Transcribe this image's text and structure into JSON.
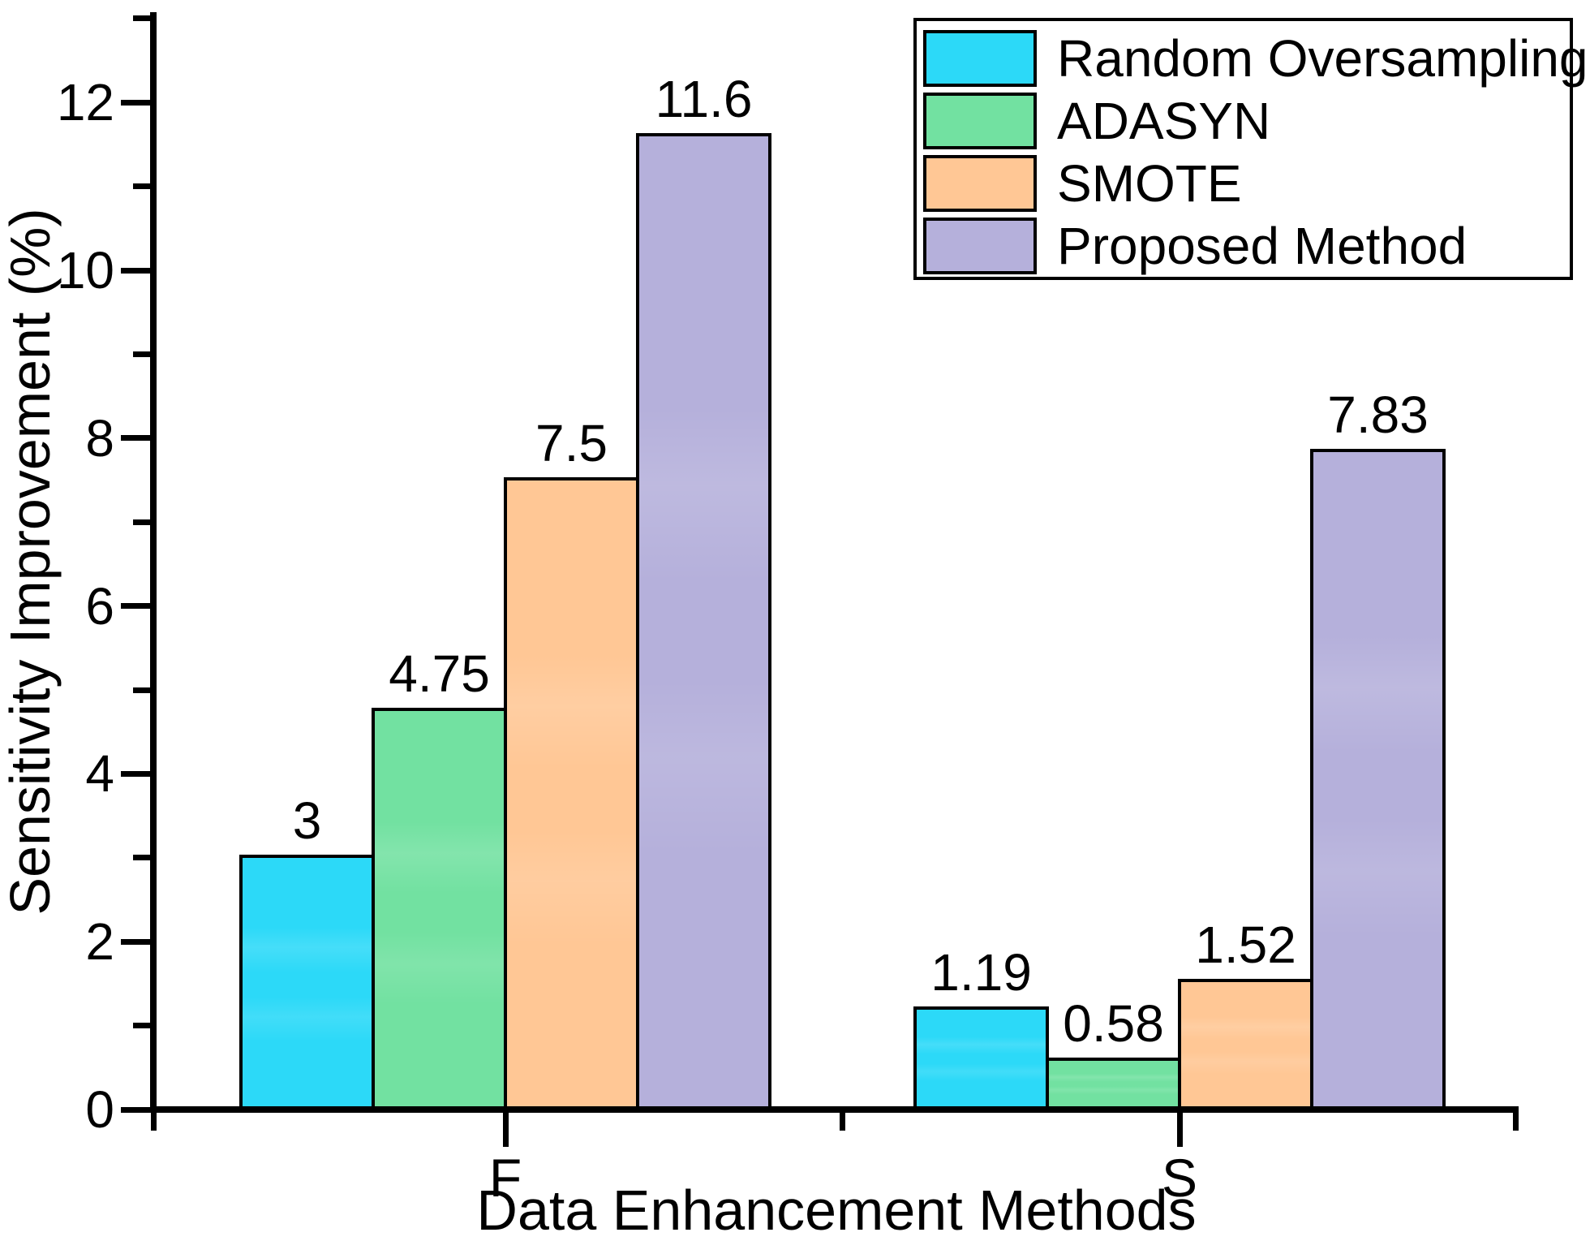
{
  "chart_data": {
    "type": "bar",
    "title": "",
    "xlabel": "Data Enhancement Methods",
    "ylabel": "Sensitivity Improvement (%)",
    "categories": [
      "F",
      "S"
    ],
    "series": [
      {
        "name": "Random Oversampling",
        "color": "#2CD9F8",
        "values": [
          3,
          1.19
        ],
        "labels": [
          "3",
          "1.19"
        ]
      },
      {
        "name": "ADASYN",
        "color": "#72E1A1",
        "values": [
          4.75,
          0.58
        ],
        "labels": [
          "4.75",
          "0.58"
        ]
      },
      {
        "name": "SMOTE",
        "color": "#FFC795",
        "values": [
          7.5,
          1.52
        ],
        "labels": [
          "7.5",
          "1.52"
        ]
      },
      {
        "name": "Proposed Method",
        "color": "#B5B0DB",
        "values": [
          11.6,
          7.83
        ],
        "labels": [
          "11.6",
          "7.83"
        ]
      }
    ],
    "ylim": [
      0,
      13.1
    ],
    "yticks": [
      0,
      2,
      4,
      6,
      8,
      10,
      12
    ],
    "ytick_labels": [
      "0",
      "2",
      "4",
      "6",
      "8",
      "10",
      "12"
    ],
    "minor_yticks": [
      1,
      3,
      5,
      7,
      9,
      11,
      13
    ],
    "grid": false,
    "legend_position": "top-right",
    "axis_color": "#000000",
    "bar_outline_color": "#000000"
  }
}
